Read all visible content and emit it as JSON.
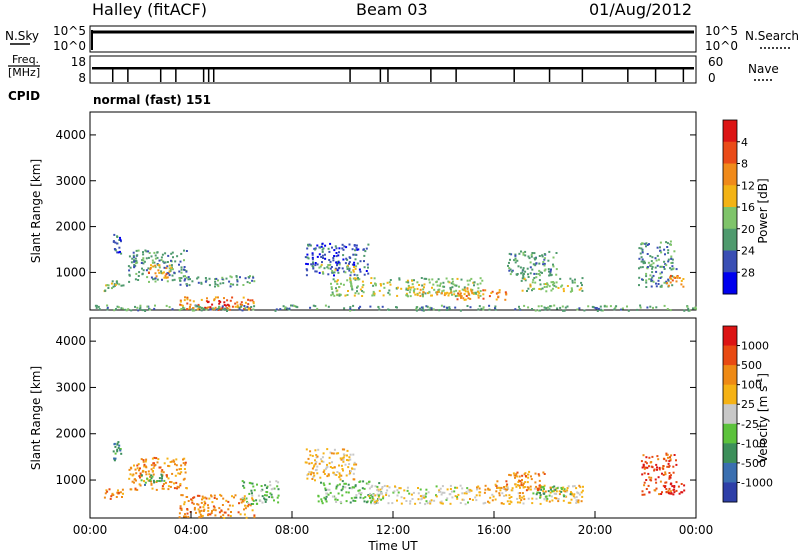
{
  "header": {
    "station": "Halley (fitACF)",
    "beam": "Beam 03",
    "date": "01/Aug/2012"
  },
  "noise_panel": {
    "left_label": "N.Sky",
    "right_label": "N.Search",
    "left_ticks": [
      "10^5",
      "10^0"
    ],
    "right_ticks": [
      "10^5",
      "10^0"
    ],
    "level_fraction": 0.82
  },
  "freq_panel": {
    "left_label_1": "Freq.",
    "left_label_2": "[MHz]",
    "right_label": "Nave",
    "left_ticks": [
      "18",
      "8"
    ],
    "right_ticks": [
      "60",
      "0"
    ],
    "level_fraction": 0.55
  },
  "cpid": {
    "label": "CPID",
    "mode": "normal (fast) 151"
  },
  "chart_data": [
    {
      "type": "heatmap",
      "title": "",
      "xlabel": "",
      "ylabel": "Slant Range [km]",
      "ylim": [
        180,
        4500
      ],
      "yticks": [
        "1000",
        "2000",
        "3000",
        "4000"
      ],
      "colorbar": {
        "label": "Power [dB]",
        "ticks": [
          "4",
          "8",
          "12",
          "16",
          "20",
          "24",
          "28"
        ],
        "colors": [
          "#0000ee",
          "#3a4fb4",
          "#4f9a6e",
          "#7fc46a",
          "#f3b315",
          "#f08a1a",
          "#ea4b18",
          "#dc1414"
        ]
      },
      "echo_regions": [
        {
          "t": [
            0.5,
            1.3
          ],
          "r": [
            600,
            850
          ],
          "level": 3
        },
        {
          "t": [
            0.9,
            1.2
          ],
          "r": [
            1400,
            1850
          ],
          "level": 1
        },
        {
          "t": [
            1.5,
            3.8
          ],
          "r": [
            800,
            1500
          ],
          "level": 2
        },
        {
          "t": [
            2.2,
            3.2
          ],
          "r": [
            900,
            1200
          ],
          "level": 5
        },
        {
          "t": [
            3.5,
            6.5
          ],
          "r": [
            700,
            950
          ],
          "level": 2
        },
        {
          "t": [
            3.5,
            6.5
          ],
          "r": [
            200,
            480
          ],
          "level": 5
        },
        {
          "t": [
            4.5,
            5.7
          ],
          "r": [
            200,
            420
          ],
          "level": 7
        },
        {
          "t": [
            8.5,
            11.0
          ],
          "r": [
            950,
            1650
          ],
          "level": 1
        },
        {
          "t": [
            9.0,
            10.5
          ],
          "r": [
            1000,
            1200
          ],
          "level": 3
        },
        {
          "t": [
            9.5,
            15.5
          ],
          "r": [
            500,
            900
          ],
          "level": 3
        },
        {
          "t": [
            12.5,
            15.5
          ],
          "r": [
            500,
            700
          ],
          "level": 4
        },
        {
          "t": [
            14.5,
            16.5
          ],
          "r": [
            400,
            650
          ],
          "level": 5
        },
        {
          "t": [
            16.5,
            18.5
          ],
          "r": [
            900,
            1500
          ],
          "level": 2
        },
        {
          "t": [
            17.0,
            19.5
          ],
          "r": [
            600,
            900
          ],
          "level": 3
        },
        {
          "t": [
            0.0,
            24.0
          ],
          "r": [
            180,
            300
          ],
          "level": 2
        },
        {
          "t": [
            21.7,
            23.2
          ],
          "r": [
            700,
            1700
          ],
          "level": 2
        },
        {
          "t": [
            22.8,
            23.5
          ],
          "r": [
            700,
            950
          ],
          "level": 5
        }
      ]
    },
    {
      "type": "heatmap",
      "title": "",
      "xlabel": "Time UT",
      "ylabel": "Slant Range [km]",
      "ylim": [
        180,
        4500
      ],
      "yticks": [
        "1000",
        "2000",
        "3000",
        "4000"
      ],
      "xticks": [
        "00:00",
        "04:00",
        "08:00",
        "12:00",
        "16:00",
        "20:00",
        "00:00"
      ],
      "xlim": [
        0,
        24
      ],
      "colorbar": {
        "label": "Velocity [m s-1]",
        "label_main": "Velocity [m s",
        "label_sup": "-1",
        "label_end": "]",
        "ticks": [
          "1000",
          "500",
          "100",
          "25",
          "-25",
          "-100",
          "-500",
          "-1000"
        ],
        "colors": [
          "#2e3fa8",
          "#3a6fb0",
          "#3c8f5a",
          "#5cc23c",
          "#c8c8c8",
          "#f5b215",
          "#ee8a15",
          "#e84a12",
          "#dc1414"
        ]
      },
      "echo_regions": [
        {
          "t": [
            0.5,
            1.3
          ],
          "r": [
            600,
            850
          ],
          "level": 6
        },
        {
          "t": [
            0.9,
            1.2
          ],
          "r": [
            1400,
            1850
          ],
          "level": 2
        },
        {
          "t": [
            1.5,
            3.8
          ],
          "r": [
            800,
            1500
          ],
          "level": 6
        },
        {
          "t": [
            2.0,
            3.0
          ],
          "r": [
            900,
            1150
          ],
          "level": 2
        },
        {
          "t": [
            3.5,
            6.5
          ],
          "r": [
            200,
            700
          ],
          "level": 6
        },
        {
          "t": [
            6.0,
            7.5
          ],
          "r": [
            500,
            1000
          ],
          "level": 3
        },
        {
          "t": [
            8.5,
            10.5
          ],
          "r": [
            1000,
            1700
          ],
          "level": 5
        },
        {
          "t": [
            9.0,
            11.5
          ],
          "r": [
            500,
            1000
          ],
          "level": 3
        },
        {
          "t": [
            11.0,
            15.0
          ],
          "r": [
            500,
            900
          ],
          "level": 4
        },
        {
          "t": [
            15.0,
            19.5
          ],
          "r": [
            500,
            900
          ],
          "level": 5
        },
        {
          "t": [
            16.0,
            18.0
          ],
          "r": [
            800,
            1200
          ],
          "level": 6
        },
        {
          "t": [
            17.5,
            19.0
          ],
          "r": [
            600,
            900
          ],
          "level": 3
        },
        {
          "t": [
            21.8,
            23.2
          ],
          "r": [
            700,
            1600
          ],
          "level": 7
        },
        {
          "t": [
            22.8,
            23.5
          ],
          "r": [
            700,
            950
          ],
          "level": 8
        }
      ]
    }
  ]
}
